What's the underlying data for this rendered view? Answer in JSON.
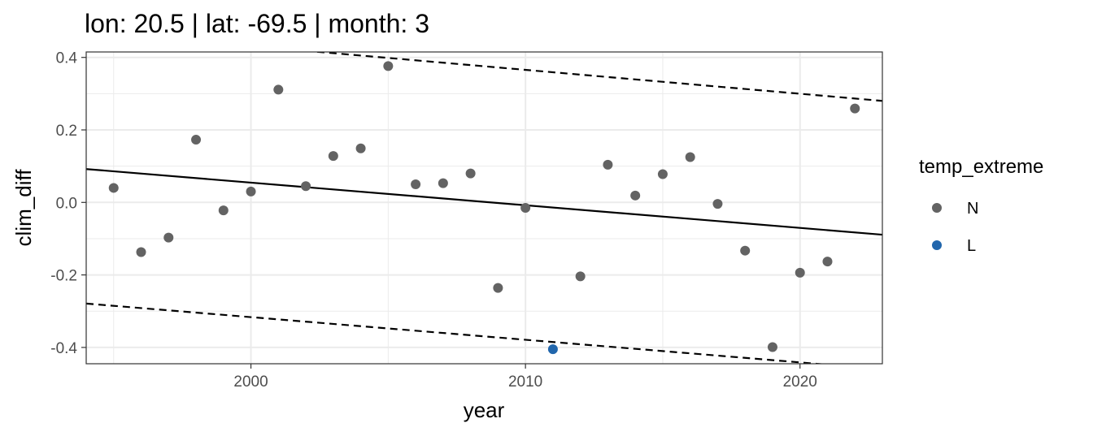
{
  "chart_data": {
    "type": "scatter",
    "title": "lon: 20.5 | lat: -69.5 | month: 3",
    "xlabel": "year",
    "ylabel": "clim_diff",
    "xlim": [
      1994,
      2023
    ],
    "ylim": [
      -0.445,
      0.415
    ],
    "x_ticks": [
      2000,
      2010,
      2020
    ],
    "x_tick_labels": [
      "2000",
      "2010",
      "2020"
    ],
    "y_ticks": [
      -0.4,
      -0.2,
      0.0,
      0.2,
      0.4
    ],
    "y_tick_labels": [
      "-0.4",
      "-0.2",
      "0.0",
      "0.2",
      "0.4"
    ],
    "grid": true,
    "legend": {
      "title": "temp_extreme",
      "position": "right",
      "entries": [
        {
          "label": "N",
          "color": "#636363"
        },
        {
          "label": "L",
          "color": "#2166ac"
        }
      ]
    },
    "points": [
      {
        "x": 1995,
        "y": 0.04,
        "group": "N"
      },
      {
        "x": 1996,
        "y": -0.137,
        "group": "N"
      },
      {
        "x": 1997,
        "y": -0.097,
        "group": "N"
      },
      {
        "x": 1998,
        "y": 0.173,
        "group": "N"
      },
      {
        "x": 1999,
        "y": -0.022,
        "group": "N"
      },
      {
        "x": 2000,
        "y": 0.03,
        "group": "N"
      },
      {
        "x": 2001,
        "y": 0.311,
        "group": "N"
      },
      {
        "x": 2002,
        "y": 0.045,
        "group": "N"
      },
      {
        "x": 2003,
        "y": 0.128,
        "group": "N"
      },
      {
        "x": 2004,
        "y": 0.149,
        "group": "N"
      },
      {
        "x": 2005,
        "y": 0.376,
        "group": "N"
      },
      {
        "x": 2006,
        "y": 0.05,
        "group": "N"
      },
      {
        "x": 2007,
        "y": 0.053,
        "group": "N"
      },
      {
        "x": 2008,
        "y": 0.08,
        "group": "N"
      },
      {
        "x": 2009,
        "y": -0.236,
        "group": "N"
      },
      {
        "x": 2010,
        "y": -0.015,
        "group": "N"
      },
      {
        "x": 2011,
        "y": -0.405,
        "group": "L"
      },
      {
        "x": 2012,
        "y": -0.204,
        "group": "N"
      },
      {
        "x": 2013,
        "y": 0.104,
        "group": "N"
      },
      {
        "x": 2014,
        "y": 0.019,
        "group": "N"
      },
      {
        "x": 2015,
        "y": 0.078,
        "group": "N"
      },
      {
        "x": 2016,
        "y": 0.125,
        "group": "N"
      },
      {
        "x": 2017,
        "y": -0.004,
        "group": "N"
      },
      {
        "x": 2018,
        "y": -0.133,
        "group": "N"
      },
      {
        "x": 2019,
        "y": -0.399,
        "group": "N"
      },
      {
        "x": 2020,
        "y": -0.194,
        "group": "N"
      },
      {
        "x": 2021,
        "y": -0.163,
        "group": "N"
      },
      {
        "x": 2022,
        "y": 0.259,
        "group": "N"
      }
    ],
    "lines": [
      {
        "style": "solid",
        "color": "#000000",
        "x": [
          1994,
          2023
        ],
        "y": [
          0.092,
          -0.089
        ]
      },
      {
        "style": "dashed",
        "color": "#000000",
        "x": [
          1994,
          2023
        ],
        "y": [
          0.471,
          0.28
        ]
      },
      {
        "style": "dashed",
        "color": "#000000",
        "x": [
          1994,
          2023
        ],
        "y": [
          -0.279,
          -0.46
        ]
      }
    ]
  }
}
